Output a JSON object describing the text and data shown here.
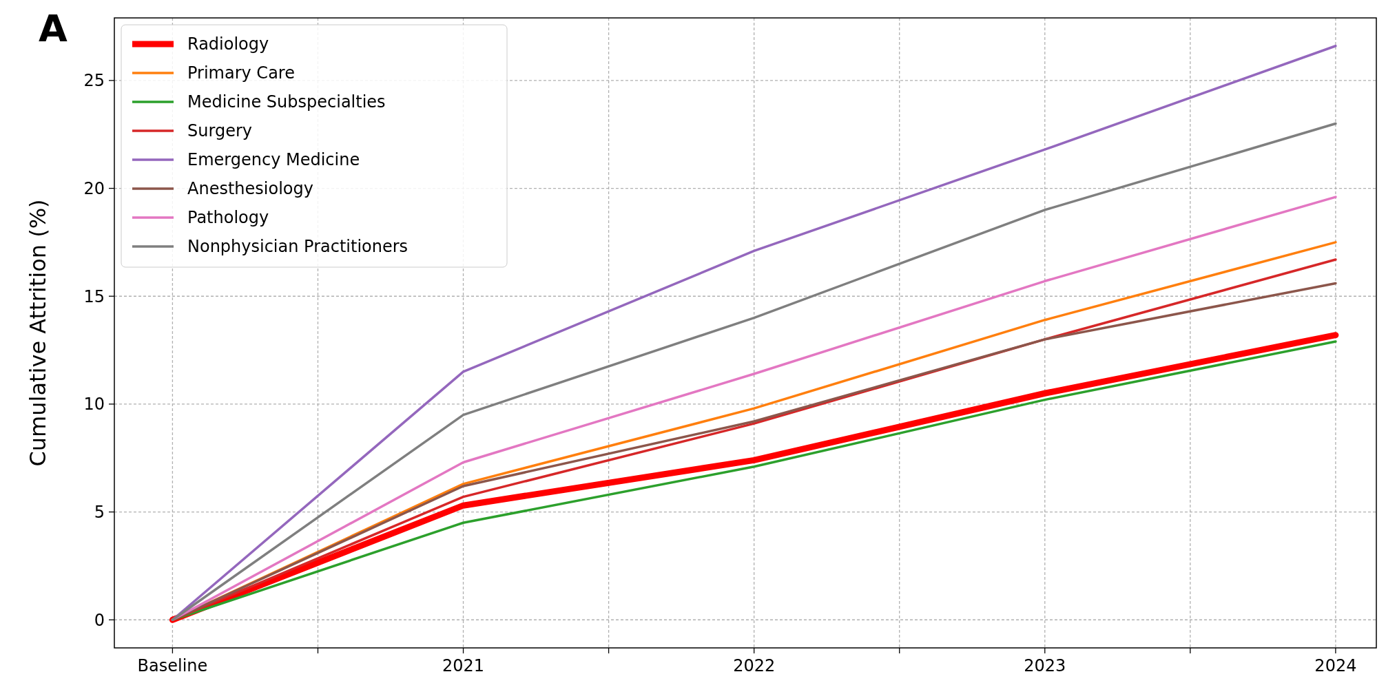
{
  "chart_data": {
    "type": "line",
    "ylabel": "Cumulative Attrition (%)",
    "annotations": [
      "A"
    ],
    "x": [
      2020,
      2021,
      2022,
      2023,
      2024
    ],
    "xlim": [
      2019.8,
      2024.14
    ],
    "ylim": [
      -1.3,
      27.9
    ],
    "xticks": [
      {
        "value": 2020,
        "label": "Baseline"
      },
      {
        "value": 2020.5,
        "label": null
      },
      2021,
      {
        "value": 2021.5,
        "label": null
      },
      2022,
      {
        "value": 2022.5,
        "label": null
      },
      2023,
      {
        "value": 2023.5,
        "label": null
      },
      2024
    ],
    "yticks": [
      0,
      5,
      10,
      15,
      20,
      25
    ],
    "grid": true,
    "legend": "top left",
    "marker": "none",
    "line_style": "solid",
    "series": [
      {
        "name": "Radiology",
        "color": "#ff0000",
        "values": [
          0,
          5.3,
          7.4,
          10.5,
          13.2
        ]
      },
      {
        "name": "Primary Care",
        "color": "#ff7f0e",
        "values": [
          0,
          6.3,
          9.8,
          13.9,
          17.5
        ]
      },
      {
        "name": "Medicine Subspecialties",
        "color": "#2ca02c",
        "values": [
          0,
          4.5,
          7.1,
          10.2,
          12.9
        ]
      },
      {
        "name": "Surgery",
        "color": "#d62728",
        "values": [
          0,
          5.7,
          9.1,
          13.0,
          16.7
        ]
      },
      {
        "name": "Emergency Medicine",
        "color": "#9467bd",
        "values": [
          0,
          11.5,
          17.1,
          21.8,
          26.6
        ]
      },
      {
        "name": "Anesthesiology",
        "color": "#8c564b",
        "values": [
          0,
          6.2,
          9.2,
          13.0,
          15.6
        ]
      },
      {
        "name": "Pathology",
        "color": "#e377c2",
        "values": [
          0,
          7.3,
          11.4,
          15.7,
          19.6
        ]
      },
      {
        "name": "Nonphysician Practitioners",
        "color": "#7f7f7f",
        "values": [
          0,
          9.5,
          14.0,
          19.0,
          23.0
        ]
      }
    ]
  }
}
